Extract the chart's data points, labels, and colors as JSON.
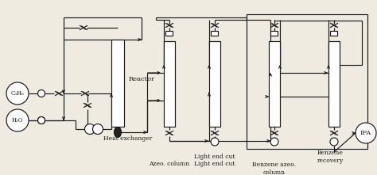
{
  "bg": "#f0ebe0",
  "lc": "#1a1a1a",
  "lw": 0.85,
  "fs": 5.5,
  "labels": {
    "C3H6": "C₃H₆",
    "H2O": "H₂O",
    "reactor": "Reactor",
    "heat_exchanger": "Heat exchanger",
    "azeo_column": "Azeo. column",
    "light_end_cut": "Light end cut",
    "benzene_azeo_column": "Benzene azeo.\ncolumn",
    "benzene_recovery": "Benzene\nrecovery",
    "IPA": "IPA"
  },
  "figsize": [
    4.74,
    2.21
  ],
  "dpi": 100
}
